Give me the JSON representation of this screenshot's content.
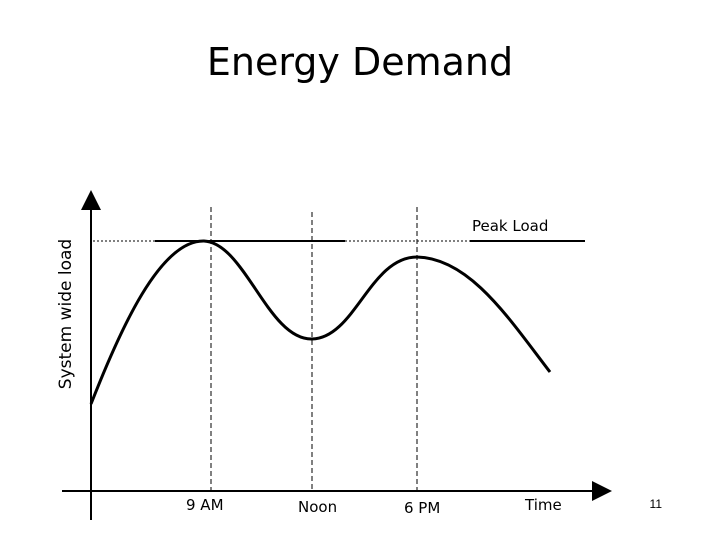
{
  "title": "Energy Demand",
  "y_axis_label": "System wide load",
  "x_axis_label": "Time",
  "peak_label": "Peak Load",
  "time_markers": [
    "9 AM",
    "Noon",
    "6 PM"
  ],
  "slide_number": "11"
}
